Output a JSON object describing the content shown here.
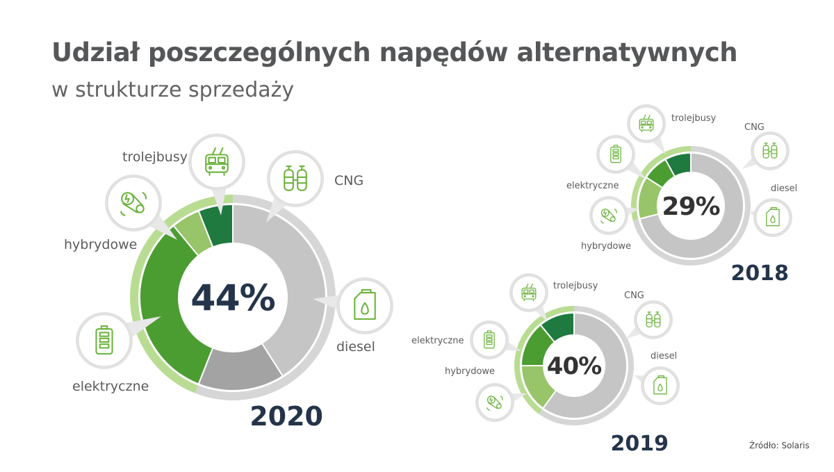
{
  "title": "Udział poszczególnych napędów alternatywnych",
  "subtitle": "w strukturze sprzedaży",
  "source": "Źródło: Solaris",
  "colors": {
    "trolejbusy": "#1e7a3e",
    "hybrydowe": "#98c46a",
    "elektryczne": "#4b9d32",
    "CNG": "#a3a3a3",
    "diesel": "#c5c5c5",
    "outer_green": "#b9dc93",
    "outer_gray": "#d6d6d6",
    "icon": "#6db33f",
    "text": "#555658",
    "year": "#24344a"
  },
  "chart_data": [
    {
      "type": "pie",
      "year": "2020",
      "center_label": "44%",
      "categories": [
        "trolejbusy",
        "hybrydowe",
        "elektryczne",
        "diesel",
        "CNG"
      ],
      "values": [
        6,
        5,
        33,
        41,
        15
      ]
    },
    {
      "type": "pie",
      "year": "2018",
      "center_label": "29%",
      "categories": [
        "trolejbusy",
        "elektryczne",
        "hybrydowe",
        "diesel",
        "CNG"
      ],
      "values": [
        8,
        8,
        13,
        71,
        0
      ]
    },
    {
      "type": "pie",
      "year": "2019",
      "center_label": "40%",
      "categories": [
        "trolejbusy",
        "elektryczne",
        "hybrydowe",
        "diesel",
        "CNG"
      ],
      "values": [
        11,
        14,
        15,
        60,
        0
      ]
    }
  ]
}
